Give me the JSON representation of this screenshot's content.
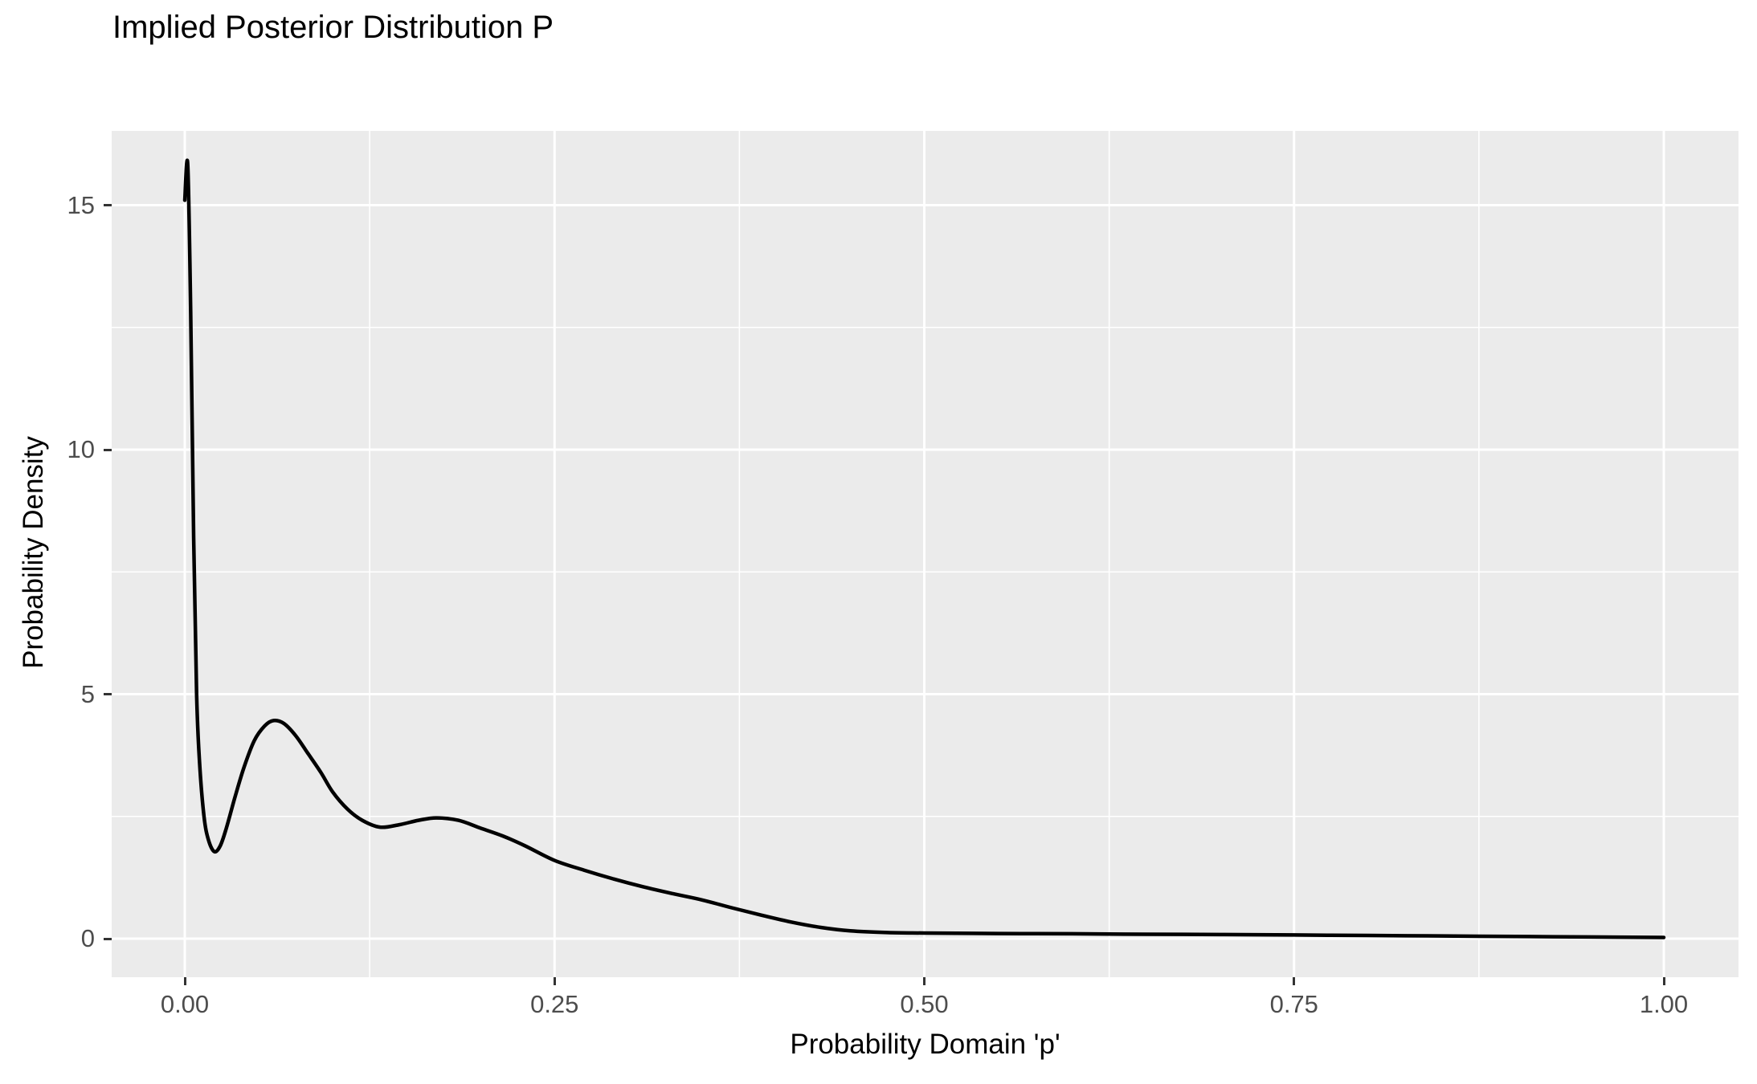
{
  "chart_data": {
    "type": "line",
    "title": "Implied Posterior Distribution P",
    "xlabel": "Probability Domain 'p'",
    "ylabel": "Probability Density",
    "legend": "none",
    "grid": "white major and minor gridlines on grey panel",
    "panel_theme": "ggplot2-grey",
    "xlim": [
      -0.05,
      1.05
    ],
    "ylim": [
      -0.79,
      16.52
    ],
    "x_axis": {
      "ticks": [
        {
          "value": 0.0,
          "label": "0.00"
        },
        {
          "value": 0.25,
          "label": "0.25"
        },
        {
          "value": 0.5,
          "label": "0.50"
        },
        {
          "value": 0.75,
          "label": "0.75"
        },
        {
          "value": 1.0,
          "label": "1.00"
        }
      ],
      "minor": [
        0.125,
        0.375,
        0.625,
        0.875
      ]
    },
    "y_axis": {
      "ticks": [
        {
          "value": 0,
          "label": "0"
        },
        {
          "value": 5,
          "label": "5"
        },
        {
          "value": 10,
          "label": "10"
        },
        {
          "value": 15,
          "label": "15"
        }
      ],
      "minor": [
        2.5,
        7.5,
        12.5
      ]
    },
    "series": [
      {
        "name": "posterior-density-curve",
        "color": "#000000",
        "width": 4.5,
        "points": [
          [
            0.0,
            15.1
          ],
          [
            0.002,
            15.83
          ],
          [
            0.004,
            12.8
          ],
          [
            0.006,
            8.2
          ],
          [
            0.008,
            5.0
          ],
          [
            0.01,
            3.6
          ],
          [
            0.013,
            2.5
          ],
          [
            0.016,
            2.02
          ],
          [
            0.02,
            1.78
          ],
          [
            0.024,
            1.9
          ],
          [
            0.028,
            2.25
          ],
          [
            0.034,
            2.9
          ],
          [
            0.04,
            3.5
          ],
          [
            0.047,
            4.05
          ],
          [
            0.054,
            4.35
          ],
          [
            0.06,
            4.46
          ],
          [
            0.067,
            4.4
          ],
          [
            0.075,
            4.15
          ],
          [
            0.083,
            3.8
          ],
          [
            0.092,
            3.4
          ],
          [
            0.1,
            3.0
          ],
          [
            0.11,
            2.65
          ],
          [
            0.12,
            2.42
          ],
          [
            0.132,
            2.28
          ],
          [
            0.145,
            2.33
          ],
          [
            0.158,
            2.42
          ],
          [
            0.17,
            2.47
          ],
          [
            0.185,
            2.42
          ],
          [
            0.2,
            2.26
          ],
          [
            0.215,
            2.1
          ],
          [
            0.23,
            1.9
          ],
          [
            0.25,
            1.6
          ],
          [
            0.27,
            1.4
          ],
          [
            0.29,
            1.22
          ],
          [
            0.31,
            1.06
          ],
          [
            0.33,
            0.92
          ],
          [
            0.35,
            0.79
          ],
          [
            0.37,
            0.63
          ],
          [
            0.39,
            0.48
          ],
          [
            0.41,
            0.34
          ],
          [
            0.43,
            0.23
          ],
          [
            0.45,
            0.16
          ],
          [
            0.475,
            0.125
          ],
          [
            0.5,
            0.115
          ],
          [
            0.55,
            0.105
          ],
          [
            0.6,
            0.1
          ],
          [
            0.65,
            0.09
          ],
          [
            0.7,
            0.085
          ],
          [
            0.75,
            0.075
          ],
          [
            0.8,
            0.065
          ],
          [
            0.85,
            0.055
          ],
          [
            0.9,
            0.045
          ],
          [
            0.95,
            0.035
          ],
          [
            1.0,
            0.025
          ]
        ]
      }
    ]
  },
  "style": {
    "figure_bg": "#FFFFFF",
    "panel_bg": "#EBEBEB",
    "grid_color": "#FFFFFF",
    "grid_major_width": 3,
    "grid_minor_width": 1.6,
    "tick_mark_color": "#333333",
    "tick_label_color": "#4D4D4D",
    "text_color": "#000000"
  }
}
